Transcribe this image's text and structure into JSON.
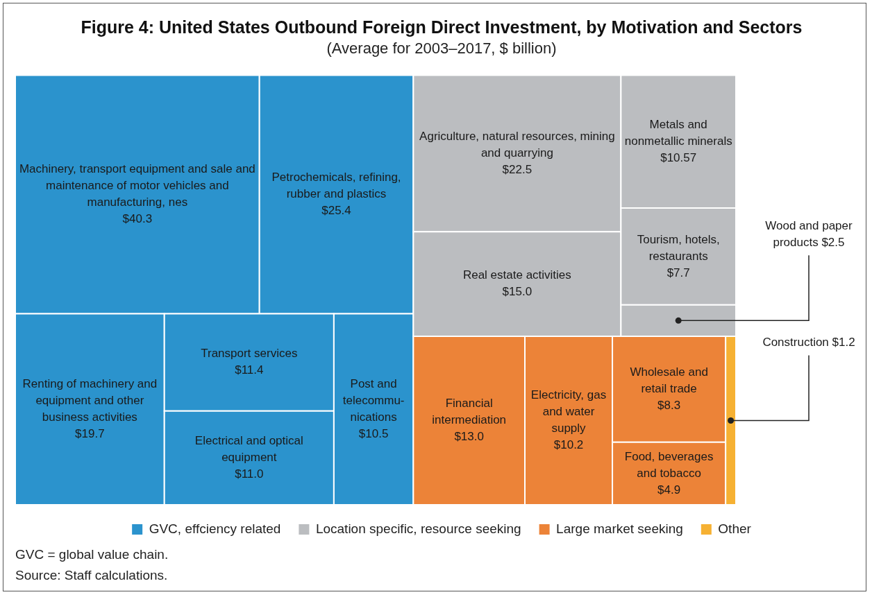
{
  "chart_data": {
    "type": "other",
    "title": "Figure 4: United States Outbound Foreign Direct Investment, by Motivation and Sectors",
    "subtitle": "(Average for 2003–2017, $ billion)",
    "categories": [
      "Machinery, transport equipment and sale and maintenance of motor vehicles and manufacturing, nes",
      "Petrochemicals, refining, rubber and plastics",
      "Renting of machinery and equipment and other business activities",
      "Transport services",
      "Electrical and optical equipment",
      "Post and telecommu-nications",
      "Agriculture, natural resources, mining and quarrying",
      "Real estate activities",
      "Metals and nonmetallic minerals",
      "Tourism, hotels, restaurants",
      "Wood and paper products",
      "Financial intermediation",
      "Electricity, gas and water supply",
      "Wholesale and retail trade",
      "Food, beverages and tobacco",
      "Construction"
    ],
    "series": [
      {
        "name": "GVC, effciency related",
        "color": "#2b93cd",
        "values": [
          40.3,
          25.4,
          19.7,
          11.4,
          11.0,
          10.5,
          null,
          null,
          null,
          null,
          null,
          null,
          null,
          null,
          null,
          null
        ],
        "value_labels": [
          "$40.3",
          "$25.4",
          "$19.7",
          "$11.4",
          "$11.0",
          "$10.5",
          null,
          null,
          null,
          null,
          null,
          null,
          null,
          null,
          null,
          null
        ]
      },
      {
        "name": "Location specific, resource seeking",
        "color": "#bbbdc0",
        "values": [
          null,
          null,
          null,
          null,
          null,
          null,
          22.5,
          15.0,
          10.57,
          7.7,
          2.5,
          null,
          null,
          null,
          null,
          null
        ],
        "value_labels": [
          null,
          null,
          null,
          null,
          null,
          null,
          "$22.5",
          "$15.0",
          "$10.57",
          "$7.7",
          "$2.5",
          null,
          null,
          null,
          null,
          null
        ]
      },
      {
        "name": "Large market seeking",
        "color": "#ec8338",
        "values": [
          null,
          null,
          null,
          null,
          null,
          null,
          null,
          null,
          null,
          null,
          null,
          13.0,
          10.2,
          8.3,
          4.9,
          null
        ],
        "value_labels": [
          null,
          null,
          null,
          null,
          null,
          null,
          null,
          null,
          null,
          null,
          null,
          "$13.0",
          "$10.2",
          "$8.3",
          "$4.9",
          null
        ]
      },
      {
        "name": "Other",
        "color": "#f6b133",
        "values": [
          null,
          null,
          null,
          null,
          null,
          null,
          null,
          null,
          null,
          null,
          null,
          null,
          null,
          null,
          null,
          1.2
        ],
        "value_labels": [
          null,
          null,
          null,
          null,
          null,
          null,
          null,
          null,
          null,
          null,
          null,
          null,
          null,
          null,
          null,
          "$1.2"
        ]
      }
    ],
    "legend": "bottom",
    "annotations": [
      "GVC = global value chain.",
      "Source: Staff calculations."
    ]
  }
}
